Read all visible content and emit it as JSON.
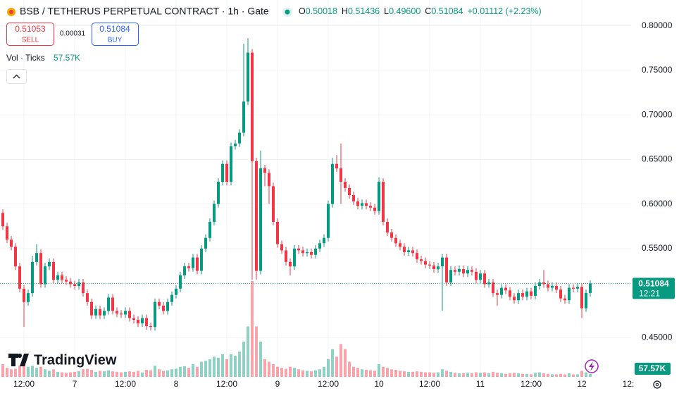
{
  "chart_data": {
    "type": "candlestick",
    "title": "BSB / TETHERUS PERPETUAL CONTRACT · 1h · Gate",
    "ohlc": [
      {
        "key": "O",
        "value": "0.50018"
      },
      {
        "key": "H",
        "value": "0.51436"
      },
      {
        "key": "L",
        "value": "0.49600"
      },
      {
        "key": "C",
        "value": "0.51084"
      }
    ],
    "change": "+0.01112 (+2.23%)",
    "sell": {
      "price": "0.51053",
      "label": "SELL"
    },
    "spread": "0.00031",
    "buy": {
      "price": "0.51084",
      "label": "BUY"
    },
    "volume_title": "Vol · Ticks",
    "volume_last": "57.57K",
    "last_price": "0.51084",
    "countdown": "12:21",
    "logo": "TradingView",
    "colors": {
      "up": "#089981",
      "down": "#f23645"
    },
    "grid": true,
    "ylim": [
      0.406,
      0.829
    ],
    "yticks": [
      {
        "value": 0.45,
        "label": "0.45000"
      },
      {
        "value": 0.55,
        "label": "0.55000"
      },
      {
        "value": 0.6,
        "label": "0.60000"
      },
      {
        "value": 0.65,
        "label": "0.65000"
      },
      {
        "value": 0.7,
        "label": "0.70000"
      },
      {
        "value": 0.75,
        "label": "0.75000"
      },
      {
        "value": 0.8,
        "label": "0.80000"
      }
    ],
    "categories": [
      null,
      null,
      null,
      null,
      null,
      "12:00",
      null,
      null,
      null,
      null,
      null,
      null,
      null,
      null,
      null,
      null,
      null,
      "7",
      null,
      null,
      null,
      null,
      null,
      null,
      null,
      null,
      null,
      null,
      null,
      "12:00",
      null,
      null,
      null,
      null,
      null,
      null,
      null,
      null,
      null,
      null,
      null,
      "8",
      null,
      null,
      null,
      null,
      null,
      null,
      null,
      null,
      null,
      null,
      null,
      "12:00",
      null,
      null,
      null,
      null,
      null,
      null,
      null,
      null,
      null,
      null,
      null,
      "9",
      null,
      null,
      null,
      null,
      null,
      null,
      null,
      null,
      null,
      null,
      null,
      "12:00",
      null,
      null,
      null,
      null,
      null,
      null,
      null,
      null,
      null,
      null,
      null,
      "10",
      null,
      null,
      null,
      null,
      null,
      null,
      null,
      null,
      null,
      null,
      null,
      "12:00",
      null,
      null,
      null,
      null,
      null,
      null,
      null,
      null,
      null,
      null,
      null,
      "11",
      null,
      null,
      null,
      null,
      null,
      null,
      null,
      null,
      null,
      null,
      null,
      "12:00",
      null,
      null,
      null,
      null,
      null,
      null,
      null,
      null,
      null,
      null,
      null,
      "12",
      null,
      null,
      null,
      null,
      null,
      null,
      null,
      null,
      null,
      null,
      null,
      "12:"
    ],
    "open": [
      0.59,
      0.575,
      0.56,
      0.552,
      0.53,
      0.505,
      0.49,
      0.5,
      0.535,
      0.545,
      0.51,
      0.53,
      0.535,
      0.515,
      0.52,
      0.515,
      0.513,
      0.51,
      0.508,
      0.512,
      0.5,
      0.49,
      0.475,
      0.482,
      0.475,
      0.48,
      0.495,
      0.48,
      0.477,
      0.476,
      0.48,
      0.472,
      0.47,
      0.466,
      0.472,
      0.463,
      0.462,
      0.49,
      0.486,
      0.48,
      0.49,
      0.498,
      0.505,
      0.52,
      0.53,
      0.528,
      0.54,
      0.525,
      0.55,
      0.562,
      0.58,
      0.6,
      0.625,
      0.645,
      0.625,
      0.665,
      0.668,
      0.68,
      0.715,
      0.77,
      0.648,
      0.525,
      0.64,
      0.635,
      0.62,
      0.58,
      0.555,
      0.548,
      0.535,
      0.53,
      0.55,
      0.548,
      0.545,
      0.546,
      0.543,
      0.55,
      0.556,
      0.562,
      0.6,
      0.645,
      0.64,
      0.625,
      0.618,
      0.61,
      0.603,
      0.598,
      0.601,
      0.598,
      0.596,
      0.592,
      0.625,
      0.58,
      0.568,
      0.562,
      0.556,
      0.552,
      0.546,
      0.548,
      0.545,
      0.538,
      0.536,
      0.532,
      0.531,
      0.527,
      0.53,
      0.54,
      0.512,
      0.526,
      0.524,
      0.527,
      0.522,
      0.526,
      0.524,
      0.515,
      0.522,
      0.51,
      0.512,
      0.5,
      0.498,
      0.506,
      0.503,
      0.496,
      0.492,
      0.5,
      0.496,
      0.502,
      0.497,
      0.508,
      0.512,
      0.51,
      0.506,
      0.508,
      0.504,
      0.494,
      0.492,
      0.506,
      0.505,
      0.507,
      0.483,
      0.50018,
      null,
      null,
      null,
      null,
      null,
      null,
      null,
      null,
      null,
      null
    ],
    "high": [
      0.594,
      0.579,
      0.564,
      0.556,
      0.534,
      0.509,
      0.504,
      0.542,
      0.555,
      0.549,
      0.534,
      0.539,
      0.539,
      0.524,
      0.524,
      0.519,
      0.517,
      0.514,
      0.516,
      0.516,
      0.504,
      0.494,
      0.486,
      0.486,
      0.484,
      0.499,
      0.499,
      0.484,
      0.481,
      0.484,
      0.484,
      0.476,
      0.474,
      0.476,
      0.476,
      0.467,
      0.494,
      0.494,
      0.49,
      0.494,
      0.502,
      0.509,
      0.524,
      0.534,
      0.534,
      0.544,
      0.544,
      0.554,
      0.566,
      0.584,
      0.604,
      0.629,
      0.649,
      0.649,
      0.669,
      0.672,
      0.684,
      0.78,
      0.786,
      0.774,
      0.652,
      0.66,
      0.644,
      0.639,
      0.624,
      0.584,
      0.559,
      0.552,
      0.539,
      0.554,
      0.554,
      0.552,
      0.55,
      0.55,
      0.554,
      0.56,
      0.566,
      0.604,
      0.652,
      0.655,
      0.668,
      0.629,
      0.622,
      0.614,
      0.607,
      0.605,
      0.605,
      0.602,
      0.6,
      0.63,
      0.629,
      0.584,
      0.572,
      0.566,
      0.56,
      0.556,
      0.552,
      0.552,
      0.549,
      0.542,
      0.54,
      0.536,
      0.535,
      0.534,
      0.544,
      0.544,
      0.53,
      0.53,
      0.531,
      0.531,
      0.53,
      0.53,
      0.528,
      0.526,
      0.526,
      0.516,
      0.516,
      0.504,
      0.51,
      0.51,
      0.507,
      0.5,
      0.504,
      0.504,
      0.506,
      0.506,
      0.512,
      0.516,
      0.526,
      0.514,
      0.512,
      0.512,
      0.508,
      0.498,
      0.51,
      0.51,
      0.511,
      0.511,
      0.504,
      0.51436,
      null,
      null,
      null,
      null,
      null,
      null,
      null,
      null,
      null,
      null
    ],
    "low": [
      0.571,
      0.556,
      0.548,
      0.526,
      0.501,
      0.462,
      0.486,
      0.496,
      0.531,
      0.506,
      0.506,
      0.526,
      0.511,
      0.511,
      0.511,
      0.509,
      0.506,
      0.504,
      0.504,
      0.496,
      0.486,
      0.471,
      0.471,
      0.471,
      0.471,
      0.476,
      0.476,
      0.473,
      0.472,
      0.472,
      0.468,
      0.466,
      0.462,
      0.462,
      0.459,
      0.458,
      0.458,
      0.482,
      0.476,
      0.476,
      0.486,
      0.494,
      0.501,
      0.516,
      0.524,
      0.524,
      0.521,
      0.521,
      0.546,
      0.558,
      0.576,
      0.596,
      0.621,
      0.621,
      0.621,
      0.661,
      0.664,
      0.676,
      0.711,
      0.515,
      0.515,
      0.521,
      0.62,
      0.6,
      0.576,
      0.551,
      0.544,
      0.531,
      0.52,
      0.526,
      0.544,
      0.541,
      0.541,
      0.539,
      0.539,
      0.546,
      0.552,
      0.558,
      0.596,
      0.636,
      0.6,
      0.614,
      0.606,
      0.599,
      0.594,
      0.594,
      0.594,
      0.592,
      0.588,
      0.588,
      0.576,
      0.564,
      0.558,
      0.552,
      0.548,
      0.542,
      0.542,
      0.541,
      0.534,
      0.532,
      0.528,
      0.527,
      0.523,
      0.523,
      0.48,
      0.508,
      0.508,
      0.52,
      0.52,
      0.518,
      0.518,
      0.52,
      0.511,
      0.511,
      0.506,
      0.506,
      0.496,
      0.486,
      0.494,
      0.499,
      0.492,
      0.488,
      0.488,
      0.492,
      0.492,
      0.493,
      0.493,
      0.504,
      0.506,
      0.502,
      0.502,
      0.5,
      0.49,
      0.488,
      0.488,
      0.501,
      0.501,
      0.472,
      0.479,
      0.496,
      null,
      null,
      null,
      null,
      null,
      null,
      null,
      null,
      null,
      null
    ],
    "close": [
      0.575,
      0.56,
      0.552,
      0.53,
      0.505,
      0.49,
      0.5,
      0.535,
      0.545,
      0.51,
      0.53,
      0.535,
      0.515,
      0.52,
      0.515,
      0.513,
      0.51,
      0.508,
      0.512,
      0.5,
      0.49,
      0.475,
      0.482,
      0.475,
      0.48,
      0.495,
      0.48,
      0.477,
      0.476,
      0.48,
      0.472,
      0.47,
      0.466,
      0.472,
      0.463,
      0.462,
      0.49,
      0.486,
      0.48,
      0.49,
      0.498,
      0.505,
      0.52,
      0.53,
      0.528,
      0.54,
      0.525,
      0.55,
      0.562,
      0.58,
      0.6,
      0.625,
      0.645,
      0.625,
      0.665,
      0.668,
      0.68,
      0.715,
      0.77,
      0.648,
      0.525,
      0.64,
      0.635,
      0.62,
      0.58,
      0.555,
      0.548,
      0.535,
      0.53,
      0.55,
      0.548,
      0.545,
      0.546,
      0.543,
      0.55,
      0.556,
      0.562,
      0.6,
      0.645,
      0.64,
      0.625,
      0.618,
      0.61,
      0.603,
      0.598,
      0.601,
      0.598,
      0.596,
      0.592,
      0.625,
      0.58,
      0.568,
      0.562,
      0.556,
      0.552,
      0.546,
      0.548,
      0.545,
      0.538,
      0.536,
      0.532,
      0.531,
      0.527,
      0.53,
      0.54,
      0.512,
      0.526,
      0.524,
      0.527,
      0.522,
      0.526,
      0.524,
      0.515,
      0.522,
      0.51,
      0.512,
      0.5,
      0.498,
      0.506,
      0.503,
      0.496,
      0.492,
      0.5,
      0.496,
      0.502,
      0.497,
      0.508,
      0.512,
      0.51,
      0.506,
      0.508,
      0.504,
      0.494,
      0.492,
      0.506,
      0.505,
      0.507,
      0.483,
      0.50018,
      0.51084,
      null,
      null,
      null,
      null,
      null,
      null,
      null,
      null,
      null,
      null
    ],
    "volume": [
      250000,
      180000,
      150000,
      160000,
      220000,
      300000,
      200000,
      220000,
      180000,
      200000,
      150000,
      120000,
      150000,
      100000,
      90000,
      80000,
      90000,
      100000,
      110000,
      150000,
      160000,
      140000,
      100000,
      120000,
      110000,
      130000,
      110000,
      100000,
      90000,
      100000,
      110000,
      100000,
      120000,
      90000,
      140000,
      130000,
      220000,
      150000,
      120000,
      130000,
      150000,
      160000,
      200000,
      210000,
      180000,
      250000,
      200000,
      300000,
      320000,
      350000,
      400000,
      380000,
      450000,
      350000,
      450000,
      420000,
      500000,
      700000,
      1000000,
      1900000,
      1000000,
      700000,
      350000,
      300000,
      250000,
      200000,
      180000,
      160000,
      200000,
      180000,
      150000,
      130000,
      120000,
      110000,
      130000,
      150000,
      200000,
      350000,
      550000,
      400000,
      650000,
      550000,
      300000,
      200000,
      180000,
      150000,
      140000,
      130000,
      120000,
      250000,
      200000,
      180000,
      150000,
      140000,
      120000,
      110000,
      100000,
      100000,
      110000,
      100000,
      90000,
      90000,
      80000,
      90000,
      150000,
      120000,
      100000,
      80000,
      70000,
      70000,
      80000,
      70000,
      90000,
      80000,
      90000,
      70000,
      100000,
      80000,
      70000,
      60000,
      70000,
      80000,
      70000,
      60000,
      60000,
      50000,
      80000,
      90000,
      70000,
      60000,
      50000,
      50000,
      60000,
      50000,
      70000,
      50000,
      50000,
      120000,
      90000,
      57570,
      null,
      null,
      null,
      null,
      null,
      null,
      null,
      null,
      null,
      null
    ]
  }
}
